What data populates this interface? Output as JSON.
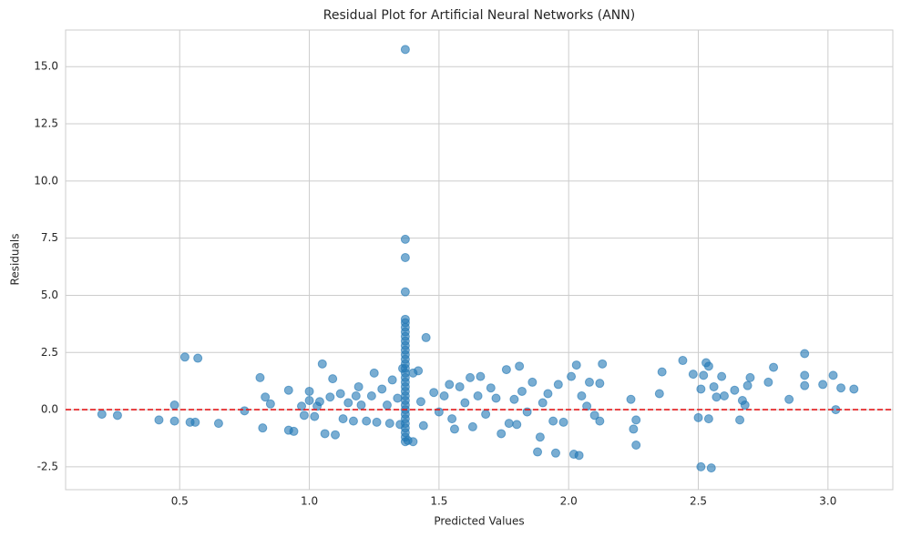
{
  "chart_data": {
    "type": "scatter",
    "title": "Residual Plot for Artificial Neural Networks (ANN)",
    "x_label": "Predicted Values",
    "y_label": "Residuals",
    "color": "#1f77b4",
    "alpha": 0.6,
    "grid": true,
    "xlim": [
      0.06,
      3.25
    ],
    "ylim": [
      -3.5,
      16.6
    ],
    "xticks": [
      0.5,
      {
        "value": 1,
        "label": "1.0"
      },
      1.5,
      {
        "value": 2,
        "label": "2.0"
      },
      2.5,
      {
        "value": 3,
        "label": "3.0"
      }
    ],
    "yticks": [
      -2.5,
      {
        "value": 0,
        "label": "0.0"
      },
      2.5,
      {
        "value": 5,
        "label": "5.0"
      },
      7.5,
      {
        "value": 10,
        "label": "10.0"
      },
      12.5,
      {
        "value": 15,
        "label": "15.0"
      }
    ],
    "hline": {
      "value": 0,
      "color": "#e41a1c",
      "style": "dashed"
    },
    "x": [
      0.2,
      0.26,
      0.42,
      0.48,
      0.48,
      0.52,
      0.54,
      0.56,
      0.57,
      0.65,
      0.75,
      0.81,
      0.82,
      0.83,
      0.85,
      0.92,
      0.92,
      0.94,
      0.97,
      0.98,
      1.0,
      1.0,
      1.02,
      1.03,
      1.04,
      1.05,
      1.06,
      1.08,
      1.09,
      1.1,
      1.12,
      1.13,
      1.15,
      1.17,
      1.18,
      1.19,
      1.2,
      1.22,
      1.24,
      1.25,
      1.26,
      1.28,
      1.3,
      1.31,
      1.32,
      1.34,
      1.35,
      1.36,
      1.37,
      1.37,
      1.37,
      1.37,
      1.37,
      1.37,
      1.37,
      1.37,
      1.37,
      1.37,
      1.37,
      1.37,
      1.37,
      1.37,
      1.37,
      1.37,
      1.37,
      1.37,
      1.37,
      1.37,
      1.37,
      1.37,
      1.37,
      1.37,
      1.37,
      1.37,
      1.37,
      1.37,
      1.37,
      1.37,
      1.37,
      1.37,
      1.38,
      1.4,
      1.4,
      1.42,
      1.43,
      1.44,
      1.45,
      1.48,
      1.5,
      1.52,
      1.54,
      1.55,
      1.56,
      1.58,
      1.6,
      1.62,
      1.63,
      1.65,
      1.66,
      1.68,
      1.7,
      1.72,
      1.74,
      1.76,
      1.77,
      1.79,
      1.8,
      1.81,
      1.82,
      1.84,
      1.86,
      1.88,
      1.89,
      1.9,
      1.92,
      1.94,
      1.95,
      1.96,
      1.98,
      2.01,
      2.02,
      2.03,
      2.04,
      2.05,
      2.07,
      2.08,
      2.1,
      2.12,
      2.12,
      2.13,
      2.24,
      2.25,
      2.26,
      2.26,
      2.35,
      2.36,
      2.44,
      2.48,
      2.5,
      2.51,
      2.51,
      2.52,
      2.53,
      2.54,
      2.54,
      2.55,
      2.56,
      2.57,
      2.59,
      2.6,
      2.64,
      2.66,
      2.67,
      2.68,
      2.69,
      2.7,
      2.77,
      2.79,
      2.85,
      2.91,
      2.91,
      2.91,
      2.98,
      3.02,
      3.03,
      3.05,
      3.1
    ],
    "values": [
      -0.2,
      -0.25,
      -0.45,
      0.2,
      -0.5,
      2.3,
      -0.55,
      -0.55,
      2.25,
      -0.6,
      -0.05,
      1.4,
      -0.8,
      0.55,
      0.25,
      0.85,
      -0.9,
      -0.95,
      0.15,
      -0.25,
      0.4,
      0.8,
      -0.3,
      0.15,
      0.35,
      2.0,
      -1.05,
      0.55,
      1.35,
      -1.1,
      0.7,
      -0.4,
      0.3,
      -0.5,
      0.6,
      1.0,
      0.2,
      -0.5,
      0.6,
      1.6,
      -0.55,
      0.9,
      0.2,
      -0.6,
      1.3,
      0.5,
      -0.65,
      1.8,
      -1.4,
      -1.2,
      -1.0,
      -0.8,
      -0.6,
      -0.4,
      -0.2,
      0,
      0.2,
      0.4,
      0.6,
      0.8,
      1.0,
      1.2,
      1.4,
      1.6,
      1.8,
      2.0,
      2.2,
      2.4,
      2.6,
      2.8,
      3.0,
      3.2,
      3.4,
      3.6,
      3.8,
      3.95,
      5.15,
      6.65,
      7.45,
      15.75,
      -1.35,
      -1.4,
      1.6,
      1.7,
      0.35,
      -0.7,
      3.15,
      0.75,
      -0.1,
      0.6,
      1.1,
      -0.4,
      -0.85,
      1.0,
      0.3,
      1.4,
      -0.75,
      0.6,
      1.45,
      -0.2,
      0.95,
      0.5,
      -1.05,
      1.75,
      -0.6,
      0.45,
      -0.65,
      1.9,
      0.8,
      -0.1,
      1.2,
      -1.85,
      -1.2,
      0.3,
      0.7,
      -0.5,
      -1.9,
      1.1,
      -0.55,
      1.45,
      -1.95,
      1.95,
      -2.0,
      0.6,
      0.15,
      1.2,
      -0.25,
      -0.5,
      1.15,
      2.0,
      0.45,
      -0.85,
      -0.45,
      -1.55,
      0.7,
      1.65,
      2.15,
      1.55,
      -0.35,
      0.9,
      -2.5,
      1.5,
      2.05,
      -0.4,
      1.9,
      -2.55,
      1.0,
      0.55,
      1.45,
      0.6,
      0.85,
      -0.45,
      0.4,
      0.2,
      1.05,
      1.4,
      1.2,
      1.85,
      0.45,
      1.05,
      1.5,
      2.45,
      1.1,
      1.5,
      0.0,
      0.95,
      0.9
    ]
  }
}
